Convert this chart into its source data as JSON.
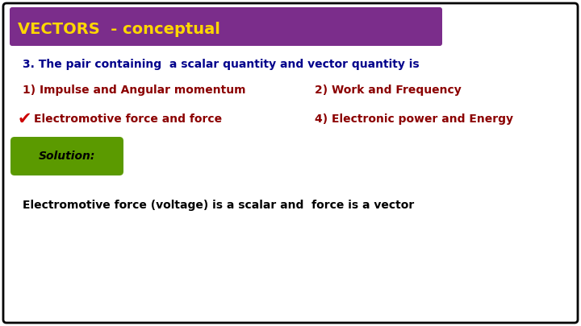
{
  "title": "VECTORS  - conceptual",
  "title_bg": "#7B2D8B",
  "title_color": "#FFD700",
  "question": "3. The pair containing  a scalar quantity and vector quantity is",
  "question_color": "#00008B",
  "opt1_text": "1) Impulse and Angular momentum",
  "opt2_text": "2) Work and Frequency",
  "opt3_text": "Electromotive force and force",
  "opt4_text": "4) Electronic power and Energy",
  "option_color": "#8B0000",
  "checkmark_color": "#CC0000",
  "solution_label": "Solution:",
  "solution_bg": "#5B9A00",
  "explanation": "Electromotive force (voltage) is a scalar and  force is a vector",
  "explanation_color": "#000000",
  "bg_color": "#FFFFFF",
  "border_color": "#000000"
}
